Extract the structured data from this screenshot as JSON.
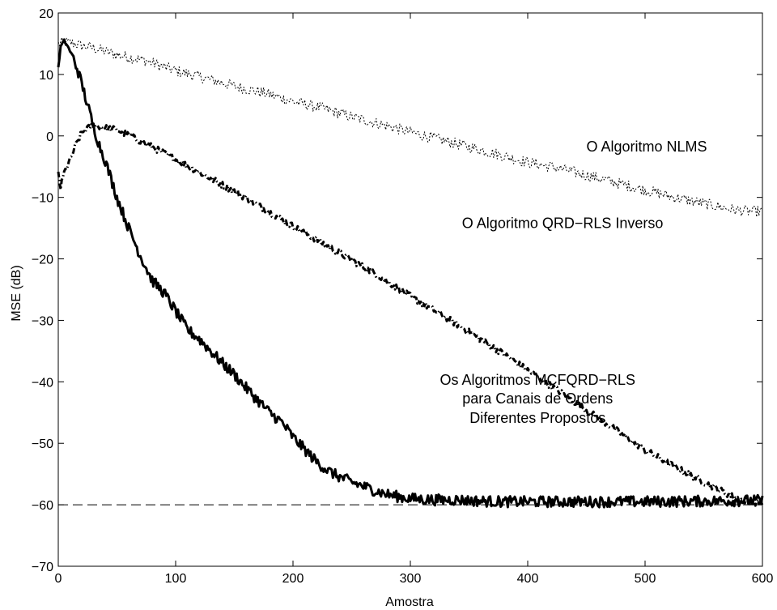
{
  "chart_data": {
    "type": "line",
    "title": "",
    "xlabel": "Amostra",
    "ylabel": "MSE (dB)",
    "xlim": [
      0,
      600
    ],
    "ylim": [
      -70,
      20
    ],
    "xticks": [
      0,
      100,
      200,
      300,
      400,
      500,
      600
    ],
    "yticks": [
      -70,
      -60,
      -50,
      -40,
      -30,
      -20,
      -10,
      0,
      10,
      20
    ],
    "grid": false,
    "colors": {
      "lines": "#000000",
      "background": "#ffffff"
    },
    "annotations": [
      {
        "text": "O Algoritmo NLMS",
        "x": 450,
        "y": -2.5
      },
      {
        "text": "O Algoritmo QRD−RLS Inverso",
        "x": 344,
        "y": -15
      },
      {
        "text": "Os Algoritmos MCFQRD−RLS",
        "x": 305,
        "y": -40.5
      },
      {
        "text": "para Canais de Ordens",
        "x": 305,
        "y": -43.5
      },
      {
        "text": "Diferentes Propostos",
        "x": 305,
        "y": -46.7
      }
    ],
    "series": [
      {
        "style": "dotted",
        "x": [
          0,
          5,
          10,
          20,
          30,
          50,
          75,
          100,
          125,
          150,
          175,
          200,
          225,
          250,
          275,
          300,
          325,
          350,
          375,
          400,
          425,
          450,
          475,
          500,
          525,
          550,
          575,
          590,
          600
        ],
        "y": [
          15,
          15.2,
          15.2,
          14.7,
          14.3,
          13.2,
          12.2,
          10.6,
          9.4,
          8.1,
          7.0,
          5.6,
          4.5,
          3.1,
          1.9,
          0.6,
          -0.6,
          -1.8,
          -3.0,
          -4.3,
          -5.2,
          -6.4,
          -7.6,
          -8.8,
          -10.0,
          -11.0,
          -12.0,
          -12.3,
          -12.3
        ]
      },
      {
        "style": "dashdot",
        "x": [
          0,
          2,
          5,
          10,
          15,
          20,
          25,
          30,
          40,
          50,
          75,
          100,
          125,
          150,
          175,
          200,
          225,
          250,
          275,
          300,
          325,
          350,
          375,
          400,
          425,
          450,
          475,
          500,
          525,
          550,
          575,
          590,
          600
        ],
        "y": [
          -6,
          -8.5,
          -6,
          -4,
          -1.5,
          0.5,
          1.2,
          1.8,
          1.3,
          1.0,
          -1.3,
          -3.8,
          -6.4,
          -9.0,
          -11.8,
          -14.7,
          -17.4,
          -20.2,
          -23.0,
          -26.1,
          -28.9,
          -31.9,
          -34.9,
          -38.1,
          -41.3,
          -44.6,
          -47.8,
          -51.1,
          -53.8,
          -56.3,
          -58.7,
          -59.6,
          -59.6
        ]
      },
      {
        "style": "solid",
        "x": [
          0,
          2,
          5,
          8,
          12,
          16,
          20,
          25,
          30,
          35,
          40,
          45,
          50,
          60,
          70,
          80,
          90,
          100,
          110,
          120,
          130,
          140,
          150,
          160,
          170,
          180,
          190,
          200,
          210,
          220,
          230,
          240,
          250,
          260,
          270,
          280,
          290,
          300,
          320,
          340,
          360,
          380,
          400,
          450,
          500,
          550,
          600
        ],
        "y": [
          11,
          14.5,
          15.5,
          14.6,
          13,
          11,
          8.5,
          5,
          1.5,
          -1.5,
          -4,
          -7,
          -10,
          -15,
          -19.5,
          -23.5,
          -25.5,
          -28.5,
          -31.5,
          -33,
          -35,
          -37,
          -38.8,
          -41,
          -43,
          -45,
          -46.5,
          -49,
          -51,
          -53,
          -54.5,
          -55.5,
          -56.3,
          -57,
          -57.7,
          -58.3,
          -58.7,
          -59.0,
          -59.2,
          -59.2,
          -59.4,
          -59.5,
          -59.5,
          -59.5,
          -59.5,
          -59.4,
          -59.3
        ]
      },
      {
        "style": "dashed",
        "x": [
          0,
          600
        ],
        "y": [
          -60,
          -60
        ]
      }
    ]
  }
}
